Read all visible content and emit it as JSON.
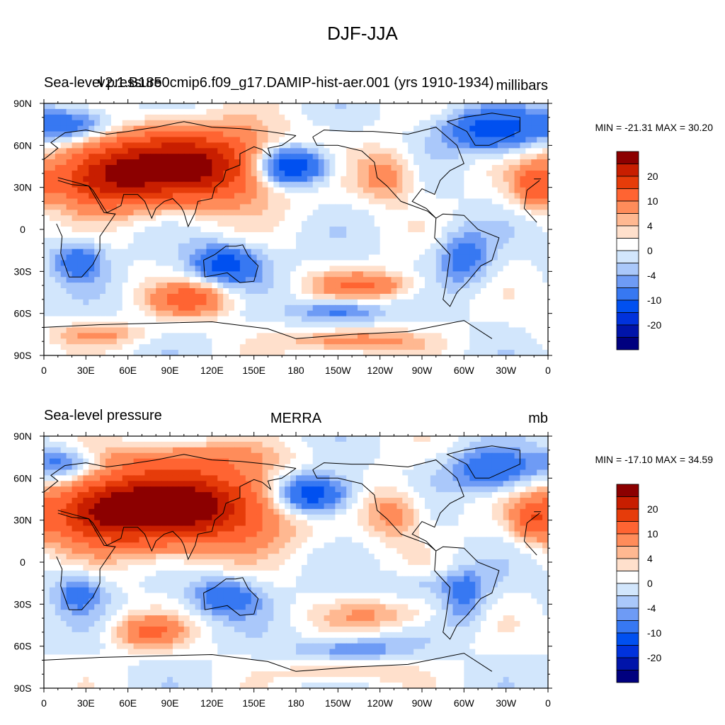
{
  "figure_title": "DJF-JJA",
  "colors": {
    "levels": [
      "#00007f",
      "#0014aa",
      "#0032dc",
      "#0050f0",
      "#3778f2",
      "#6e9bf5",
      "#aac8fa",
      "#d2e6fc",
      "#ffffff",
      "#ffe0cc",
      "#ffb891",
      "#ff8c5a",
      "#ff6432",
      "#e63c0a",
      "#c81e00",
      "#8c0000"
    ],
    "land_outline": "#000000",
    "frame": "#000000"
  },
  "chart_data": [
    {
      "type": "heatmap",
      "id": "top",
      "left_title": "Sea-level pressure",
      "center_title": "v2.1.B1850cmip6.f09_g17.DAMIP-hist-aer.001 (yrs 1910-1934)",
      "right_title": "millibars",
      "stats": "MIN = -21.31 MAX =  30.20",
      "min": -21.31,
      "max": 30.2,
      "x_ticks": [
        "0",
        "30E",
        "60E",
        "90E",
        "120E",
        "150E",
        "180",
        "150W",
        "120W",
        "90W",
        "60W",
        "30W",
        "0"
      ],
      "y_ticks": [
        "90N",
        "60N",
        "30N",
        "0",
        "30S",
        "60S",
        "90S"
      ],
      "colorbar_labels": [
        "20",
        "10",
        "4",
        "0",
        "-4",
        "-10",
        "-20"
      ],
      "blobs": [
        {
          "lon": 100,
          "lat": 45,
          "rx": 70,
          "ry": 25,
          "v": 28
        },
        {
          "lon": 40,
          "lat": 35,
          "rx": 35,
          "ry": 20,
          "v": 14
        },
        {
          "lon": -115,
          "lat": 38,
          "rx": 20,
          "ry": 18,
          "v": 8
        },
        {
          "lon": -10,
          "lat": 30,
          "rx": 15,
          "ry": 15,
          "v": 10
        },
        {
          "lon": 175,
          "lat": 45,
          "rx": 28,
          "ry": 15,
          "v": -21
        },
        {
          "lon": -40,
          "lat": 70,
          "rx": 35,
          "ry": 15,
          "v": -12
        },
        {
          "lon": 20,
          "lat": 75,
          "rx": 30,
          "ry": 12,
          "v": -10
        },
        {
          "lon": 25,
          "lat": -22,
          "rx": 18,
          "ry": 14,
          "v": -9
        },
        {
          "lon": 130,
          "lat": -25,
          "rx": 25,
          "ry": 14,
          "v": -12
        },
        {
          "lon": -60,
          "lat": -20,
          "rx": 18,
          "ry": 20,
          "v": -8
        },
        {
          "lon": 105,
          "lat": -50,
          "rx": 28,
          "ry": 12,
          "v": 12
        },
        {
          "lon": -130,
          "lat": -40,
          "rx": 35,
          "ry": 10,
          "v": 10
        },
        {
          "lon": -150,
          "lat": -58,
          "rx": 30,
          "ry": 8,
          "v": -8
        },
        {
          "lon": -140,
          "lat": -80,
          "rx": 45,
          "ry": 8,
          "v": 9
        },
        {
          "lon": 40,
          "lat": -75,
          "rx": 35,
          "ry": 8,
          "v": 6
        }
      ]
    },
    {
      "type": "heatmap",
      "id": "bottom",
      "left_title": "Sea-level pressure",
      "center_title": "MERRA",
      "right_title": "mb",
      "stats": "MIN = -17.10 MAX =  34.59",
      "min": -17.1,
      "max": 34.59,
      "x_ticks": [
        "0",
        "30E",
        "60E",
        "90E",
        "120E",
        "150E",
        "180",
        "150W",
        "120W",
        "90W",
        "60W",
        "30W",
        "0"
      ],
      "y_ticks": [
        "90N",
        "60N",
        "30N",
        "0",
        "30S",
        "60S",
        "90S"
      ],
      "colorbar_labels": [
        "20",
        "10",
        "4",
        "0",
        "-4",
        "-10",
        "-20"
      ],
      "blobs": [
        {
          "lon": 95,
          "lat": 40,
          "rx": 70,
          "ry": 28,
          "v": 30
        },
        {
          "lon": 40,
          "lat": 35,
          "rx": 35,
          "ry": 20,
          "v": 14
        },
        {
          "lon": 100,
          "lat": 75,
          "rx": 60,
          "ry": 10,
          "v": 5
        },
        {
          "lon": -110,
          "lat": 35,
          "rx": 20,
          "ry": 18,
          "v": 8
        },
        {
          "lon": -10,
          "lat": 30,
          "rx": 15,
          "ry": 15,
          "v": 10
        },
        {
          "lon": -170,
          "lat": 48,
          "rx": 28,
          "ry": 15,
          "v": -17
        },
        {
          "lon": -40,
          "lat": 65,
          "rx": 30,
          "ry": 15,
          "v": -10
        },
        {
          "lon": 15,
          "lat": 70,
          "rx": 25,
          "ry": 12,
          "v": -9
        },
        {
          "lon": 25,
          "lat": -22,
          "rx": 18,
          "ry": 14,
          "v": -8
        },
        {
          "lon": 130,
          "lat": -25,
          "rx": 25,
          "ry": 14,
          "v": -9
        },
        {
          "lon": -60,
          "lat": -25,
          "rx": 15,
          "ry": 20,
          "v": -7
        },
        {
          "lon": -90,
          "lat": -15,
          "rx": 40,
          "ry": 8,
          "v": -3
        },
        {
          "lon": 75,
          "lat": -50,
          "rx": 25,
          "ry": 12,
          "v": 10
        },
        {
          "lon": -120,
          "lat": -38,
          "rx": 40,
          "ry": 10,
          "v": 6
        },
        {
          "lon": -140,
          "lat": -62,
          "rx": 40,
          "ry": 8,
          "v": -6
        },
        {
          "lon": -145,
          "lat": -78,
          "rx": 40,
          "ry": 8,
          "v": 5
        }
      ]
    }
  ]
}
